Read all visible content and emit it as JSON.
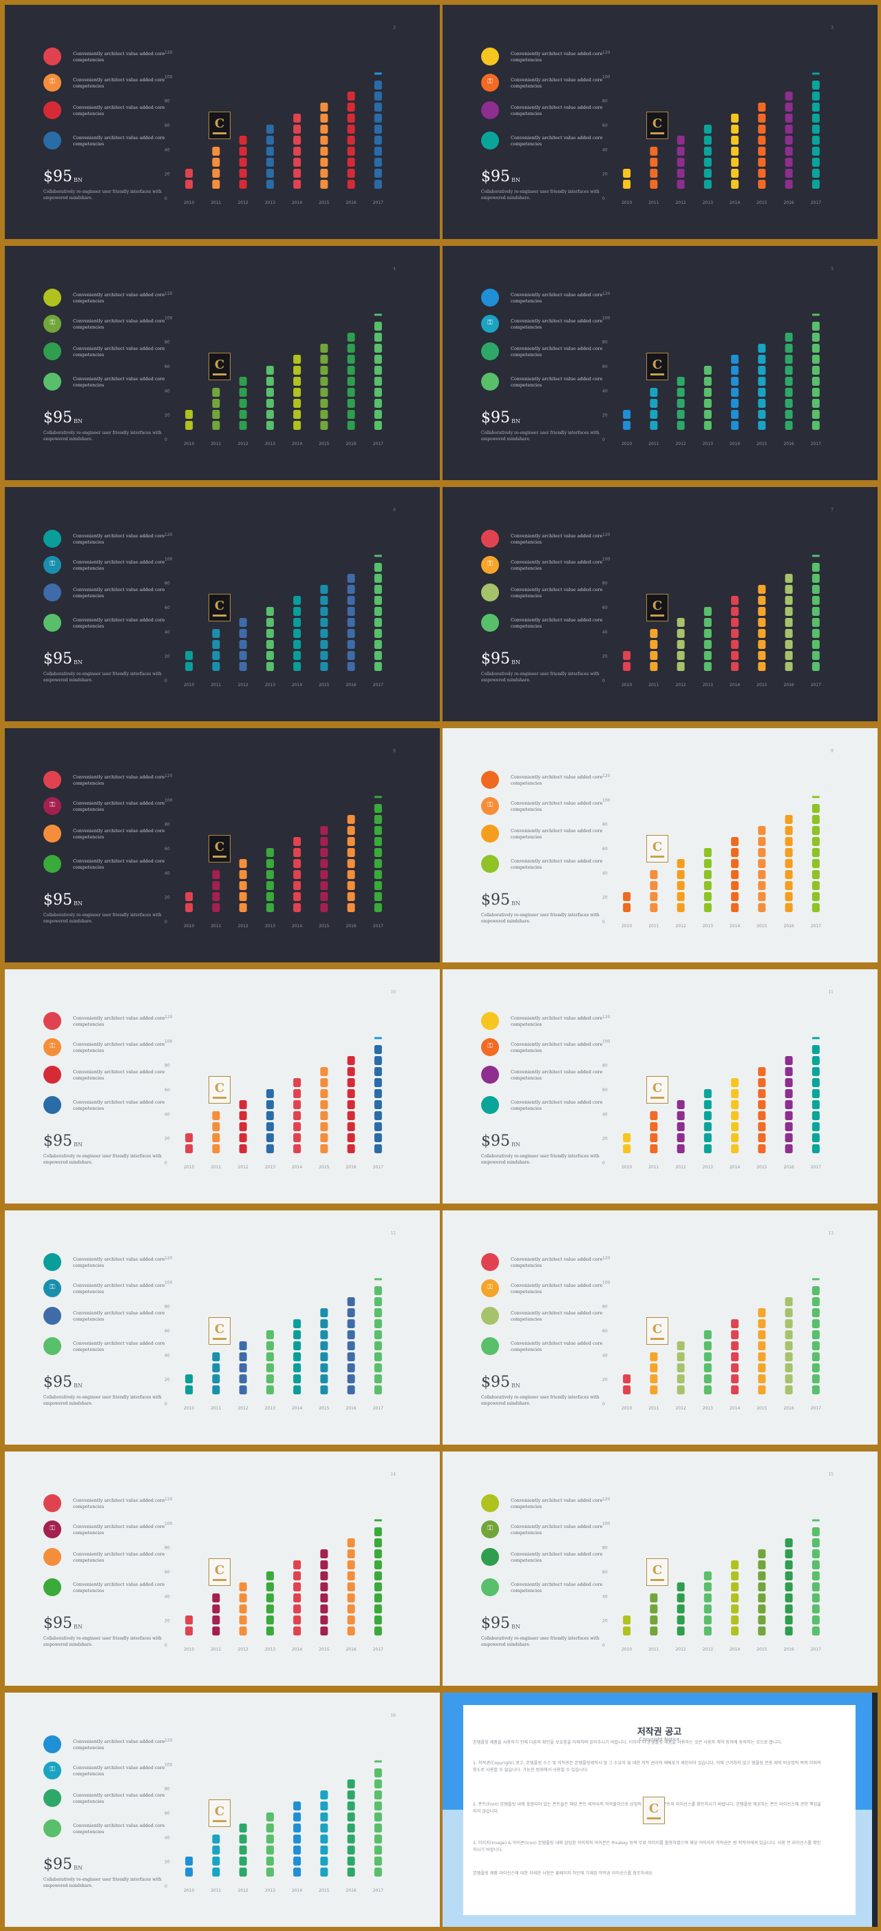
{
  "slides": [
    {
      "theme": "dark",
      "number": "2",
      "colors": [
        "#e0434f",
        "#f58e3a",
        "#d62b36",
        "#2a6ca8"
      ],
      "highlight_color": "#1e98e0"
    },
    {
      "theme": "dark",
      "number": "3",
      "colors": [
        "#f7c520",
        "#f26a24",
        "#8e2e8e",
        "#0aa59a"
      ],
      "highlight_color": "#0aa59a"
    },
    {
      "theme": "dark",
      "number": "4",
      "colors": [
        "#b0c21e",
        "#72a63a",
        "#2f9e4e",
        "#58bf6a"
      ],
      "highlight_color": "#58bf6a"
    },
    {
      "theme": "dark",
      "number": "5",
      "colors": [
        "#1f8fd6",
        "#1aa3c2",
        "#2ea868",
        "#58bf6a"
      ],
      "highlight_color": "#58bf6a"
    },
    {
      "theme": "dark",
      "number": "6",
      "colors": [
        "#0a9e9a",
        "#1a8fad",
        "#3f6ca8",
        "#58bf6a"
      ],
      "highlight_color": "#58bf6a"
    },
    {
      "theme": "dark",
      "number": "7",
      "colors": [
        "#e0434f",
        "#f5a52a",
        "#a6c36b",
        "#58bf6a"
      ],
      "highlight_color": "#58bf6a"
    },
    {
      "theme": "dark",
      "number": "8",
      "colors": [
        "#e0434f",
        "#a3204f",
        "#f58e3a",
        "#3aaa3a"
      ],
      "highlight_color": "#3aaa3a"
    },
    {
      "theme": "light",
      "number": "9",
      "colors": [
        "#ef6a1e",
        "#f58e3a",
        "#f59e1e",
        "#8ec225"
      ],
      "highlight_color": "#8ec225"
    },
    {
      "theme": "light",
      "number": "10",
      "colors": [
        "#e0434f",
        "#f58e3a",
        "#d62b36",
        "#2a6ca8"
      ],
      "highlight_color": "#1e98e0"
    },
    {
      "theme": "light",
      "number": "11",
      "colors": [
        "#f7c520",
        "#f26a24",
        "#8e2e8e",
        "#0aa59a"
      ],
      "highlight_color": "#0aa59a"
    },
    {
      "theme": "light",
      "number": "12",
      "colors": [
        "#0a9e9a",
        "#1a8fad",
        "#3f6ca8",
        "#58bf6a"
      ],
      "highlight_color": "#58bf6a"
    },
    {
      "theme": "light",
      "number": "13",
      "colors": [
        "#e0434f",
        "#f5a52a",
        "#a6c36b",
        "#58bf6a"
      ],
      "highlight_color": "#58bf6a"
    },
    {
      "theme": "light",
      "number": "14",
      "colors": [
        "#e0434f",
        "#a3204f",
        "#f58e3a",
        "#3aaa3a"
      ],
      "highlight_color": "#3aaa3a"
    },
    {
      "theme": "light",
      "number": "15",
      "colors": [
        "#b0c21e",
        "#72a63a",
        "#2f9e4e",
        "#58bf6a"
      ],
      "highlight_color": "#58bf6a"
    },
    {
      "theme": "light",
      "number": "16",
      "colors": [
        "#1f8fd6",
        "#1aa3c2",
        "#2ea868",
        "#58bf6a"
      ],
      "highlight_color": "#58bf6a"
    }
  ],
  "legend_items": [
    "Conveniently architect value added core competencies",
    "Conveniently architect value added core competencies",
    "Conveniently architect value added core competencies",
    "Conveniently architect value added core competencies"
  ],
  "legend_icon_names": [
    "circle-icon",
    "key-icon",
    "circle-icon",
    "circle-icon"
  ],
  "big_number": "$95",
  "big_unit": "BN",
  "description": "Collaboratively re-engineer user friendly interfaces with empowered mindshare.",
  "logo_letter": "C",
  "chart_data": {
    "type": "bar",
    "categories": [
      "2010",
      "2011",
      "2012",
      "2013",
      "2014",
      "2015",
      "2016",
      "2017"
    ],
    "values": [
      30,
      42,
      53,
      64,
      74,
      85,
      95,
      100
    ],
    "color_index": [
      0,
      1,
      2,
      3,
      0,
      1,
      2,
      3
    ],
    "y_ticks": [
      "0",
      "20",
      "40",
      "60",
      "80",
      "100",
      "120"
    ],
    "ylim": [
      0,
      120
    ]
  },
  "copyright": {
    "title": "저작권 공고",
    "subtitle": "Copyright Notice",
    "paragraphs": [
      "본템플릿 제품을 사용하기 전에 다음의 확인을 보호함을 이해하며 읽어주시기 바랍니다. 이하의 이 본템플릿 제품을 사용하는 것은 사용자 계약 동의에 동의하는 것으로 봅니다.",
      "1. 저작권(Copyright) 로고, 본템플릿 소스 및 저작권은 본템플릿제작사 및 그 소유자 및 대한 저작 권리와 재배포가 제한되어 있습니다. 이에 근거하지 않고 템플릿 전용 제작 비상업적 목적 이외의 용도로 사용할 수 없습니다. 가능한 범위에서 사용할 수 있습니다.",
      "2. 폰트(Font) 본템플릿 내에 포함되어 있는 폰트들은 해당 폰트 제작사의 저작물이므로 상업적 이용 시 각 폰트의 라이선스를 확인하시기 바랍니다. 본템플릿 제공자는 폰트 라이선스에 관한 책임을 지지 않습니다.",
      "3. 이미지(Image) & 아이콘(Icon) 본템플릿 내에 삽입된 이미지와 아이콘은 Pixabay 등의 무료 이미지를 활용하였으며 해당 이미지의 저작권은 원 저작자에게 있습니다. 사용 전 라이선스를 확인하시기 바랍니다.",
      "본템플릿 제품 라이선스에 대한 자세한 사항은 홈페이지 하단에 기재된 저작권 라이선스를 참조하세요."
    ]
  }
}
